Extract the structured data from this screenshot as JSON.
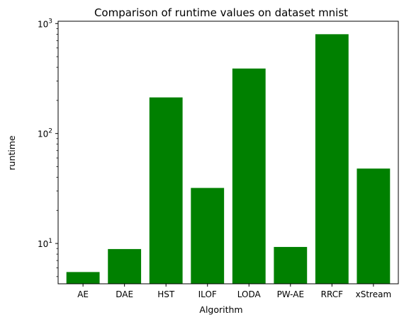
{
  "chart_data": {
    "type": "bar",
    "title": "Comparison of runtime values on dataset mnist",
    "xlabel": "Algorithm",
    "ylabel": "runtime",
    "yscale": "log",
    "ylim": [
      4.3,
      1050
    ],
    "yticks": [
      {
        "value": 10,
        "base": "10",
        "exp": "1"
      },
      {
        "value": 100,
        "base": "10",
        "exp": "2"
      },
      {
        "value": 1000,
        "base": "10",
        "exp": "3"
      }
    ],
    "bar_color": "#008000",
    "categories": [
      "AE",
      "DAE",
      "HST",
      "ILOF",
      "LODA",
      "PW-AE",
      "RRCF",
      "xStream"
    ],
    "values": [
      5.5,
      8.9,
      213,
      32,
      390,
      9.3,
      800,
      48
    ],
    "grid": false,
    "legend": "none"
  }
}
